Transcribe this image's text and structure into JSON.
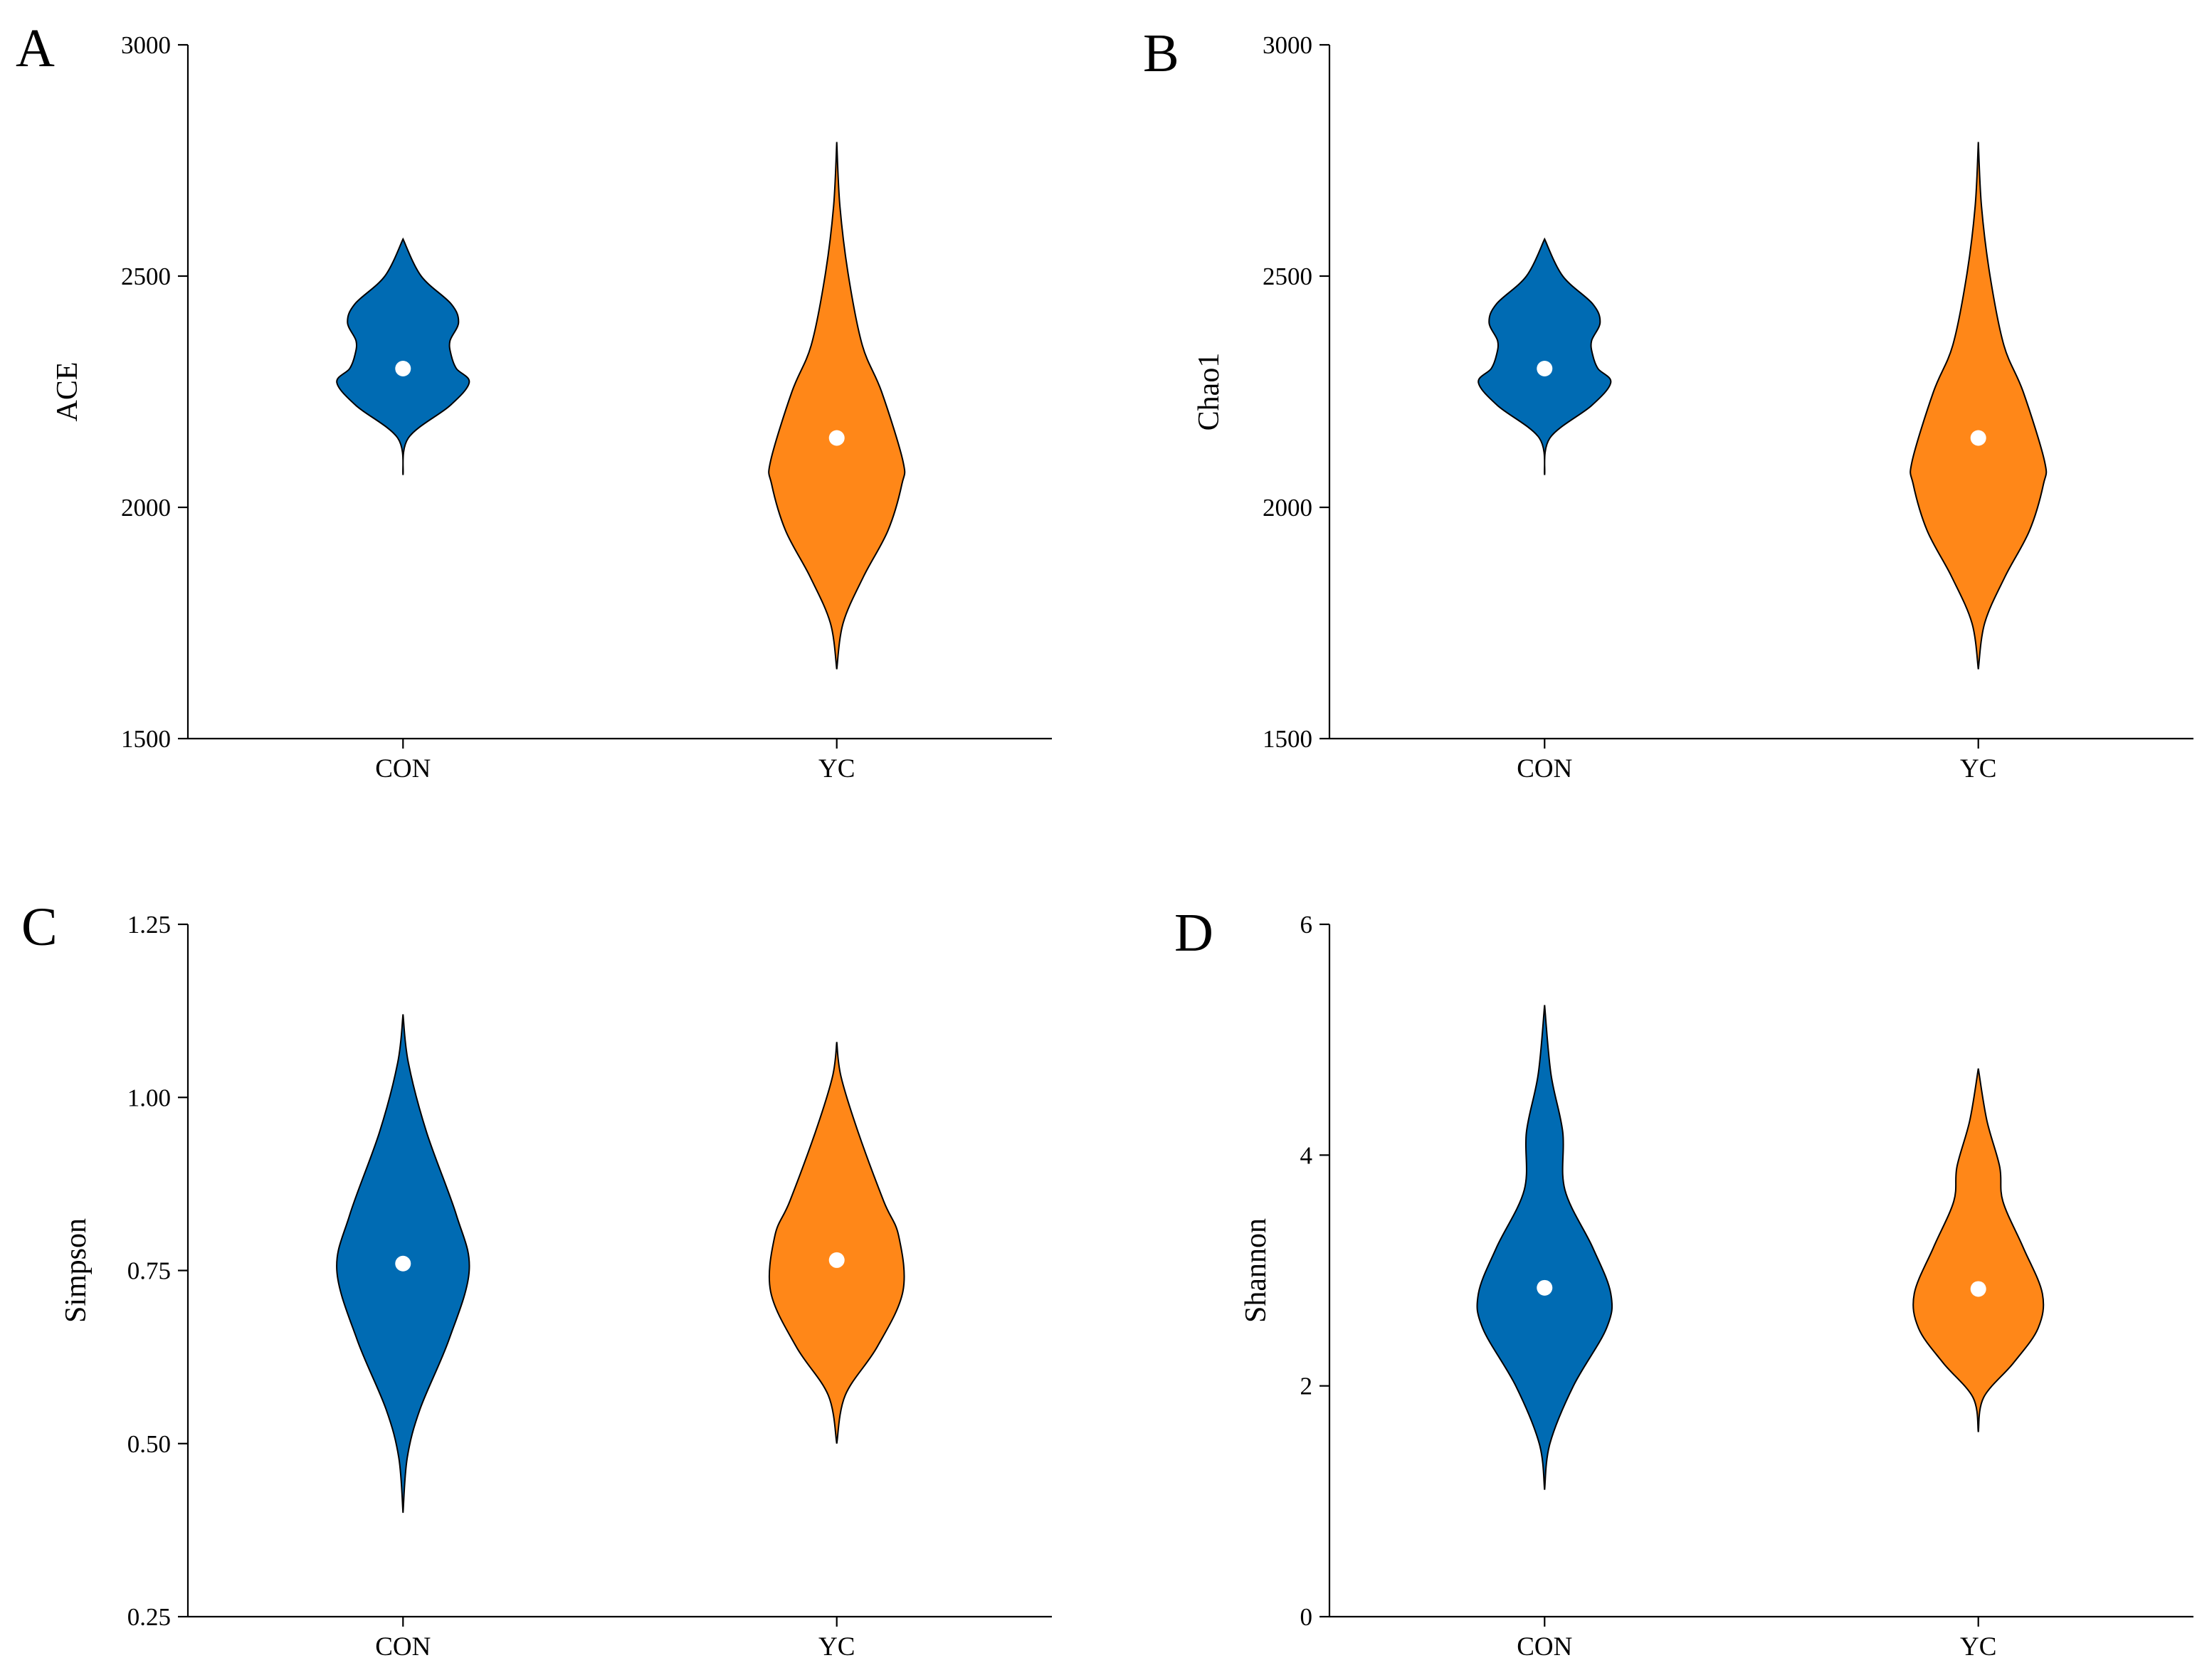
{
  "colors": {
    "CON": "#006BB3",
    "YC": "#FF8718",
    "median_dot": "#FFFFFF"
  },
  "chart_data": [
    {
      "type": "violin",
      "panel": "A",
      "ylabel": "ACE",
      "categories": [
        "CON",
        "YC"
      ],
      "ylim": [
        1500,
        3000
      ],
      "yticks": [
        1500,
        2000,
        2500,
        3000
      ],
      "ytick_labels": [
        "1500",
        "2000",
        "2500",
        "3000"
      ],
      "series": [
        {
          "name": "CON",
          "min": 2070,
          "max": 2580,
          "median": 2300,
          "profile": [
            [
              2070,
              0
            ],
            [
              2150,
              0.05
            ],
            [
              2220,
              0.44
            ],
            [
              2270,
              0.62
            ],
            [
              2300,
              0.5
            ],
            [
              2330,
              0.45
            ],
            [
              2360,
              0.44
            ],
            [
              2400,
              0.52
            ],
            [
              2440,
              0.45
            ],
            [
              2500,
              0.17
            ],
            [
              2580,
              0
            ]
          ]
        },
        {
          "name": "YC",
          "min": 1650,
          "max": 2790,
          "median": 2150,
          "profile": [
            [
              1650,
              0
            ],
            [
              1750,
              0.06
            ],
            [
              1850,
              0.25
            ],
            [
              1950,
              0.48
            ],
            [
              2050,
              0.61
            ],
            [
              2100,
              0.62
            ],
            [
              2250,
              0.42
            ],
            [
              2350,
              0.24
            ],
            [
              2500,
              0.11
            ],
            [
              2650,
              0.03
            ],
            [
              2790,
              0
            ]
          ]
        }
      ]
    },
    {
      "type": "violin",
      "panel": "B",
      "ylabel": "Chao1",
      "categories": [
        "CON",
        "YC"
      ],
      "ylim": [
        1500,
        3000
      ],
      "yticks": [
        1500,
        2000,
        2500,
        3000
      ],
      "ytick_labels": [
        "1500",
        "2000",
        "2500",
        "3000"
      ],
      "series": [
        {
          "name": "CON",
          "min": 2070,
          "max": 2580,
          "median": 2300,
          "profile": [
            [
              2070,
              0
            ],
            [
              2150,
              0.05
            ],
            [
              2220,
              0.44
            ],
            [
              2270,
              0.62
            ],
            [
              2300,
              0.5
            ],
            [
              2330,
              0.45
            ],
            [
              2360,
              0.44
            ],
            [
              2400,
              0.52
            ],
            [
              2440,
              0.45
            ],
            [
              2500,
              0.17
            ],
            [
              2580,
              0
            ]
          ]
        },
        {
          "name": "YC",
          "min": 1650,
          "max": 2790,
          "median": 2150,
          "profile": [
            [
              1650,
              0
            ],
            [
              1750,
              0.06
            ],
            [
              1850,
              0.25
            ],
            [
              1950,
              0.48
            ],
            [
              2050,
              0.61
            ],
            [
              2100,
              0.62
            ],
            [
              2250,
              0.42
            ],
            [
              2350,
              0.24
            ],
            [
              2500,
              0.11
            ],
            [
              2650,
              0.03
            ],
            [
              2790,
              0
            ]
          ]
        }
      ]
    },
    {
      "type": "violin",
      "panel": "C",
      "ylabel": "Simpson",
      "categories": [
        "CON",
        "YC"
      ],
      "ylim": [
        0.25,
        1.25
      ],
      "yticks": [
        0.25,
        0.5,
        0.75,
        1.0,
        1.25
      ],
      "ytick_labels": [
        "0.25",
        "0.50",
        "0.75",
        "1.00",
        "1.25"
      ],
      "series": [
        {
          "name": "CON",
          "min": 0.4,
          "max": 1.12,
          "median": 0.76,
          "profile": [
            [
              0.4,
              0
            ],
            [
              0.48,
              0.04
            ],
            [
              0.55,
              0.16
            ],
            [
              0.65,
              0.43
            ],
            [
              0.75,
              0.62
            ],
            [
              0.83,
              0.5
            ],
            [
              0.95,
              0.22
            ],
            [
              1.05,
              0.05
            ],
            [
              1.12,
              0
            ]
          ]
        },
        {
          "name": "YC",
          "min": 0.5,
          "max": 1.08,
          "median": 0.765,
          "profile": [
            [
              0.5,
              0
            ],
            [
              0.57,
              0.08
            ],
            [
              0.64,
              0.38
            ],
            [
              0.72,
              0.62
            ],
            [
              0.8,
              0.58
            ],
            [
              0.85,
              0.44
            ],
            [
              0.95,
              0.2
            ],
            [
              1.03,
              0.04
            ],
            [
              1.08,
              0
            ]
          ]
        }
      ]
    },
    {
      "type": "violin",
      "panel": "D",
      "ylabel": "Shannon",
      "categories": [
        "CON",
        "YC"
      ],
      "ylim": [
        0,
        6
      ],
      "yticks": [
        0,
        2,
        4,
        6
      ],
      "ytick_labels": [
        "0",
        "2",
        "4",
        "6"
      ],
      "series": [
        {
          "name": "CON",
          "min": 1.1,
          "max": 5.3,
          "median": 2.85,
          "profile": [
            [
              1.1,
              0
            ],
            [
              1.5,
              0.05
            ],
            [
              2.0,
              0.27
            ],
            [
              2.5,
              0.58
            ],
            [
              2.8,
              0.62
            ],
            [
              3.2,
              0.45
            ],
            [
              3.7,
              0.19
            ],
            [
              4.2,
              0.17
            ],
            [
              4.7,
              0.06
            ],
            [
              5.3,
              0
            ]
          ]
        },
        {
          "name": "YC",
          "min": 1.6,
          "max": 4.75,
          "median": 2.84,
          "profile": [
            [
              1.6,
              0
            ],
            [
              1.9,
              0.05
            ],
            [
              2.2,
              0.33
            ],
            [
              2.5,
              0.56
            ],
            [
              2.8,
              0.6
            ],
            [
              3.2,
              0.42
            ],
            [
              3.6,
              0.23
            ],
            [
              3.9,
              0.2
            ],
            [
              4.3,
              0.08
            ],
            [
              4.75,
              0
            ]
          ]
        }
      ]
    }
  ]
}
